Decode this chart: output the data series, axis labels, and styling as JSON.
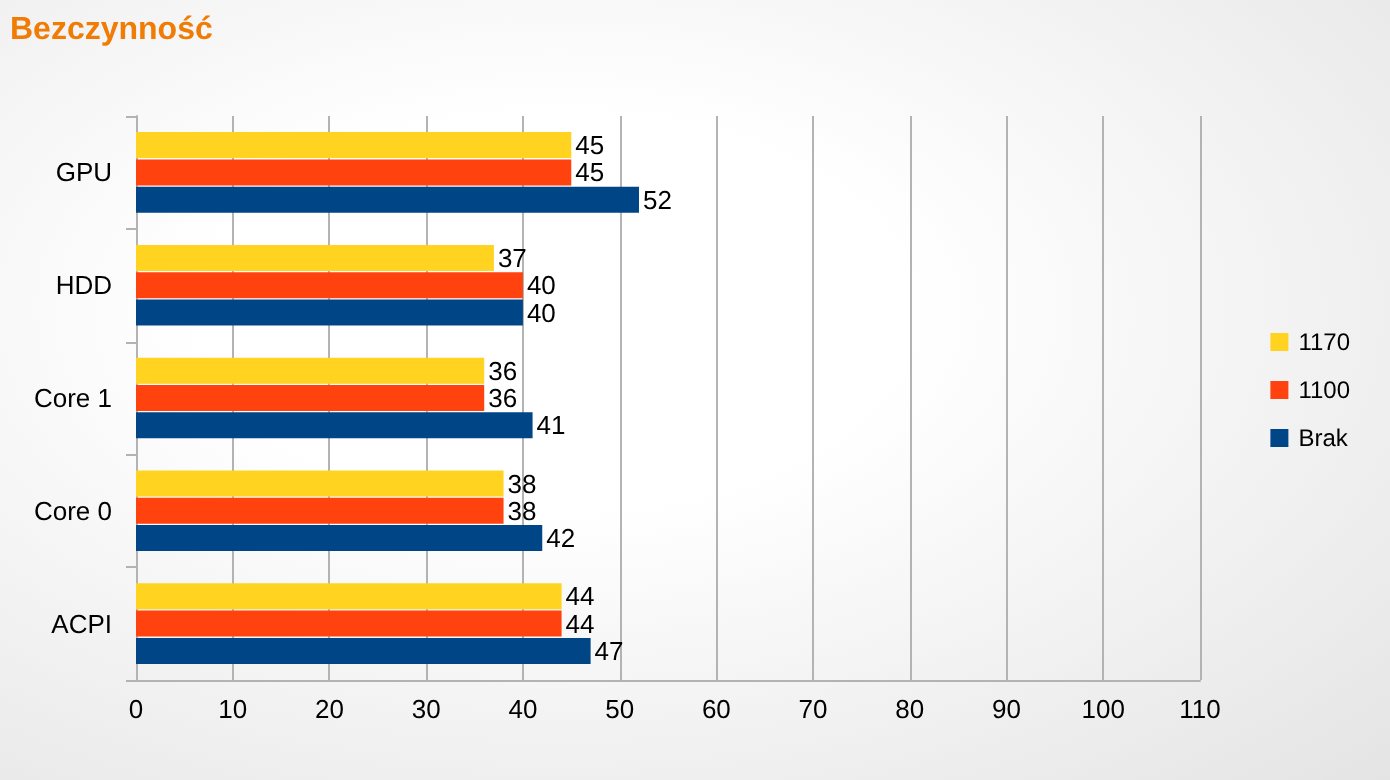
{
  "chart_data": {
    "type": "bar",
    "orientation": "horizontal",
    "title": "Bezczynność",
    "categories": [
      "GPU",
      "HDD",
      "Core 1",
      "Core 0",
      "ACPI"
    ],
    "series": [
      {
        "name": "1170",
        "color": "#ffd320",
        "values": [
          45,
          37,
          36,
          38,
          44
        ]
      },
      {
        "name": "1100",
        "color": "#ff420e",
        "values": [
          45,
          40,
          36,
          38,
          44
        ]
      },
      {
        "name": "Brak",
        "color": "#004586",
        "values": [
          52,
          40,
          41,
          42,
          47
        ]
      }
    ],
    "xlim": [
      0,
      110
    ],
    "xticks": [
      0,
      10,
      20,
      30,
      40,
      50,
      60,
      70,
      80,
      90,
      100,
      110
    ],
    "grid": "x",
    "legend": "right",
    "data_labels": true
  }
}
